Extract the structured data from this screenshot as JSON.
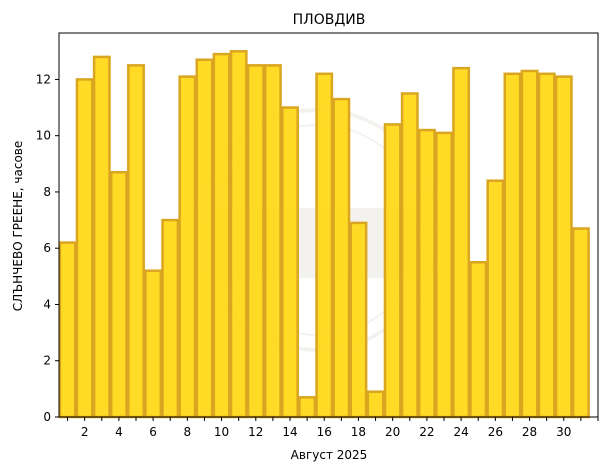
{
  "chart_data": {
    "type": "bar",
    "title": "ПЛОВДИВ",
    "xlabel": "Август  2025",
    "ylabel": "СЛЪНЧЕВО ГРЕЕНЕ,  часове",
    "categories": [
      1,
      2,
      3,
      4,
      5,
      6,
      7,
      8,
      9,
      10,
      11,
      12,
      13,
      14,
      15,
      16,
      17,
      18,
      19,
      20,
      21,
      22,
      23,
      24,
      25,
      26,
      27,
      28,
      29,
      30,
      31
    ],
    "values": [
      6.2,
      12.0,
      12.8,
      8.7,
      12.5,
      5.2,
      7.0,
      12.1,
      12.7,
      12.9,
      13.0,
      12.5,
      12.5,
      11.0,
      0.7,
      12.2,
      11.3,
      6.9,
      0.9,
      10.4,
      11.5,
      10.2,
      10.1,
      12.4,
      5.5,
      8.4,
      12.2,
      12.3,
      12.2,
      12.1,
      6.7
    ],
    "xticks": [
      2,
      4,
      6,
      8,
      10,
      12,
      14,
      16,
      18,
      20,
      22,
      24,
      26,
      28,
      30
    ],
    "yticks": [
      0,
      2,
      4,
      6,
      8,
      10,
      12
    ],
    "ylim": [
      0,
      13.65
    ],
    "xlim": [
      0.5,
      32.0
    ],
    "bar_color": "#FFD814",
    "edge_color": "#DAA520",
    "grid": false,
    "watermark_text": "1890"
  }
}
